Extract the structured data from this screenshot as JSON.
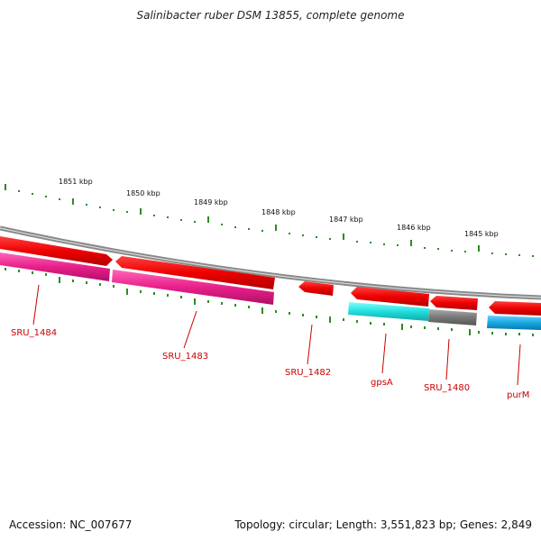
{
  "title": "Salinibacter ruber DSM 13855, complete genome",
  "colors": {
    "backbone": "#888888",
    "tick": "#2e8b22",
    "forward_gene": "#ee0000",
    "reverse_pink": "#e8208a",
    "reverse_cyan": "#22dddd",
    "reverse_gray": "#777777",
    "reverse_blue": "#18a8e0",
    "label": "#cc0000"
  },
  "ticks": [
    {
      "label": "1851 kbp"
    },
    {
      "label": "1850 kbp"
    },
    {
      "label": "1849 kbp"
    },
    {
      "label": "1848 kbp"
    },
    {
      "label": "1847 kbp"
    },
    {
      "label": "1846 kbp"
    },
    {
      "label": "1845 kbp"
    }
  ],
  "genes": [
    {
      "name": "SRU_1484"
    },
    {
      "name": "SRU_1483"
    },
    {
      "name": "SRU_1482"
    },
    {
      "name": "gpsA"
    },
    {
      "name": "SRU_1480"
    },
    {
      "name": "purM"
    }
  ],
  "footer": {
    "accession": "Accession: NC_007677",
    "summary": "Topology: circular; Length: 3,551,823 bp; Genes: 2,849"
  }
}
